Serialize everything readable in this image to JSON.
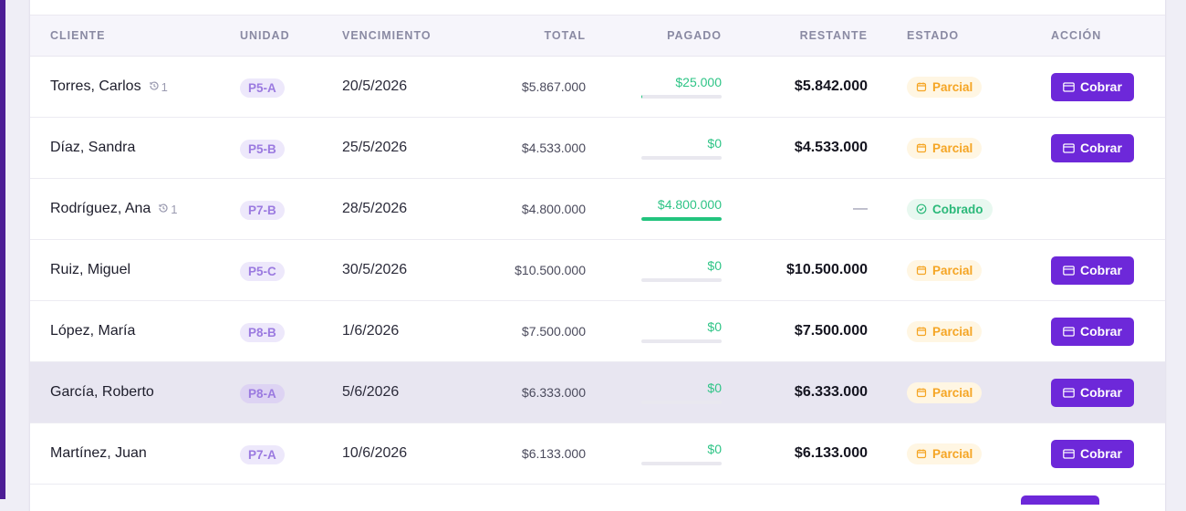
{
  "table": {
    "headers": {
      "cliente": "CLIENTE",
      "unidad": "UNIDAD",
      "vencimiento": "VENCIMIENTO",
      "total": "TOTAL",
      "pagado": "PAGADO",
      "restante": "RESTANTE",
      "estado": "ESTADO",
      "accion": "ACCIÓN"
    },
    "rows": [
      {
        "cliente": "Torres, Carlos",
        "history": "1",
        "unidad": "P5-A",
        "vencimiento": "20/5/2026",
        "total": "$5.867.000",
        "pagado": "$25.000",
        "paid_fraction": 0.004,
        "restante": "$5.842.000",
        "estado": "Parcial",
        "estado_type": "parcial",
        "accion": "Cobrar",
        "highlight": false
      },
      {
        "cliente": "Díaz, Sandra",
        "history": "",
        "unidad": "P5-B",
        "vencimiento": "25/5/2026",
        "total": "$4.533.000",
        "pagado": "$0",
        "paid_fraction": 0,
        "restante": "$4.533.000",
        "estado": "Parcial",
        "estado_type": "parcial",
        "accion": "Cobrar",
        "highlight": false
      },
      {
        "cliente": "Rodríguez, Ana",
        "history": "1",
        "unidad": "P7-B",
        "vencimiento": "28/5/2026",
        "total": "$4.800.000",
        "pagado": "$4.800.000",
        "paid_fraction": 1,
        "restante": "—",
        "estado": "Cobrado",
        "estado_type": "cobrado",
        "accion": "",
        "highlight": false
      },
      {
        "cliente": "Ruiz, Miguel",
        "history": "",
        "unidad": "P5-C",
        "vencimiento": "30/5/2026",
        "total": "$10.500.000",
        "pagado": "$0",
        "paid_fraction": 0,
        "restante": "$10.500.000",
        "estado": "Parcial",
        "estado_type": "parcial",
        "accion": "Cobrar",
        "highlight": false
      },
      {
        "cliente": "López, María",
        "history": "",
        "unidad": "P8-B",
        "vencimiento": "1/6/2026",
        "total": "$7.500.000",
        "pagado": "$0",
        "paid_fraction": 0,
        "restante": "$7.500.000",
        "estado": "Parcial",
        "estado_type": "parcial",
        "accion": "Cobrar",
        "highlight": false
      },
      {
        "cliente": "García, Roberto",
        "history": "",
        "unidad": "P8-A",
        "vencimiento": "5/6/2026",
        "total": "$6.333.000",
        "pagado": "$0",
        "paid_fraction": 0,
        "restante": "$6.333.000",
        "estado": "Parcial",
        "estado_type": "parcial",
        "accion": "Cobrar",
        "highlight": true
      },
      {
        "cliente": "Martínez, Juan",
        "history": "",
        "unidad": "P7-A",
        "vencimiento": "10/6/2026",
        "total": "$6.133.000",
        "pagado": "$0",
        "paid_fraction": 0,
        "restante": "$6.133.000",
        "estado": "Parcial",
        "estado_type": "parcial",
        "accion": "Cobrar",
        "highlight": false
      }
    ]
  },
  "icons": {
    "history": "history-icon",
    "parcial": "calendar-icon",
    "cobrado": "check-circle-icon",
    "cobrar": "credit-card-icon"
  },
  "colors": {
    "accent": "#6d28d9",
    "paid": "#22c47e",
    "parcial": "#f5a524",
    "cobrado": "#2bb97a"
  }
}
